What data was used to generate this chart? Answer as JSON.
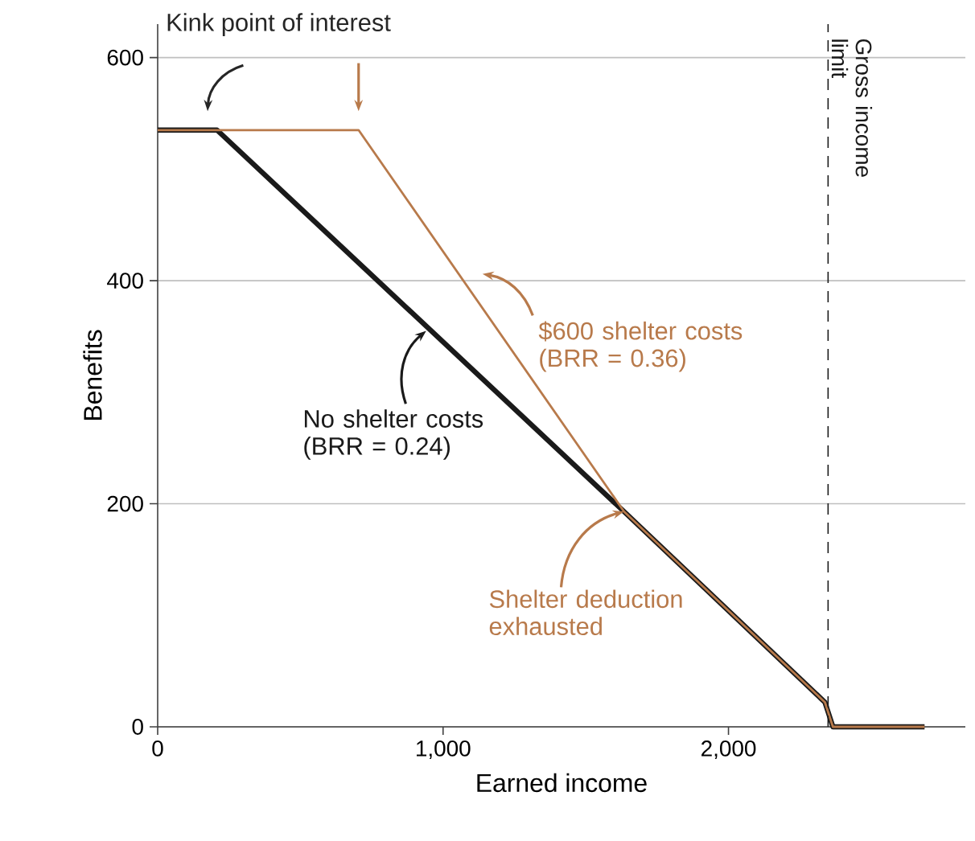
{
  "chart_data": {
    "type": "line",
    "xlabel": "Earned income",
    "ylabel": "Benefits",
    "xlim": [
      0,
      2830
    ],
    "ylim": [
      0,
      630
    ],
    "xticks": [
      0,
      {
        "value": 1000,
        "label": "1,000"
      },
      {
        "value": 2000,
        "label": "2,000"
      }
    ],
    "yticks": [
      0,
      200,
      400,
      600
    ],
    "grid": "y",
    "series": [
      {
        "name": "No shelter costs (BRR = 0.24)",
        "color": "#1a1a1a",
        "x": [
          0,
          208,
          1634,
          2338,
          2366,
          2687
        ],
        "values": [
          535,
          535,
          193,
          22,
          0,
          0
        ]
      },
      {
        "name": "$600 shelter costs (BRR = 0.36)",
        "color": "#b87a4b",
        "x": [
          0,
          704,
          1634,
          2338,
          2366,
          2687
        ],
        "values": [
          535,
          535,
          193,
          22,
          0,
          0
        ]
      }
    ],
    "ref_lines": [
      {
        "axis": "x",
        "value": 2349,
        "label": "Gross income limit",
        "line_style": "dashed",
        "color": "#1a1a1a"
      }
    ],
    "annotations": [
      "Kink point of interest",
      {
        "text": "Shelter deduction exhausted",
        "x": 1634,
        "y": 193
      }
    ]
  }
}
